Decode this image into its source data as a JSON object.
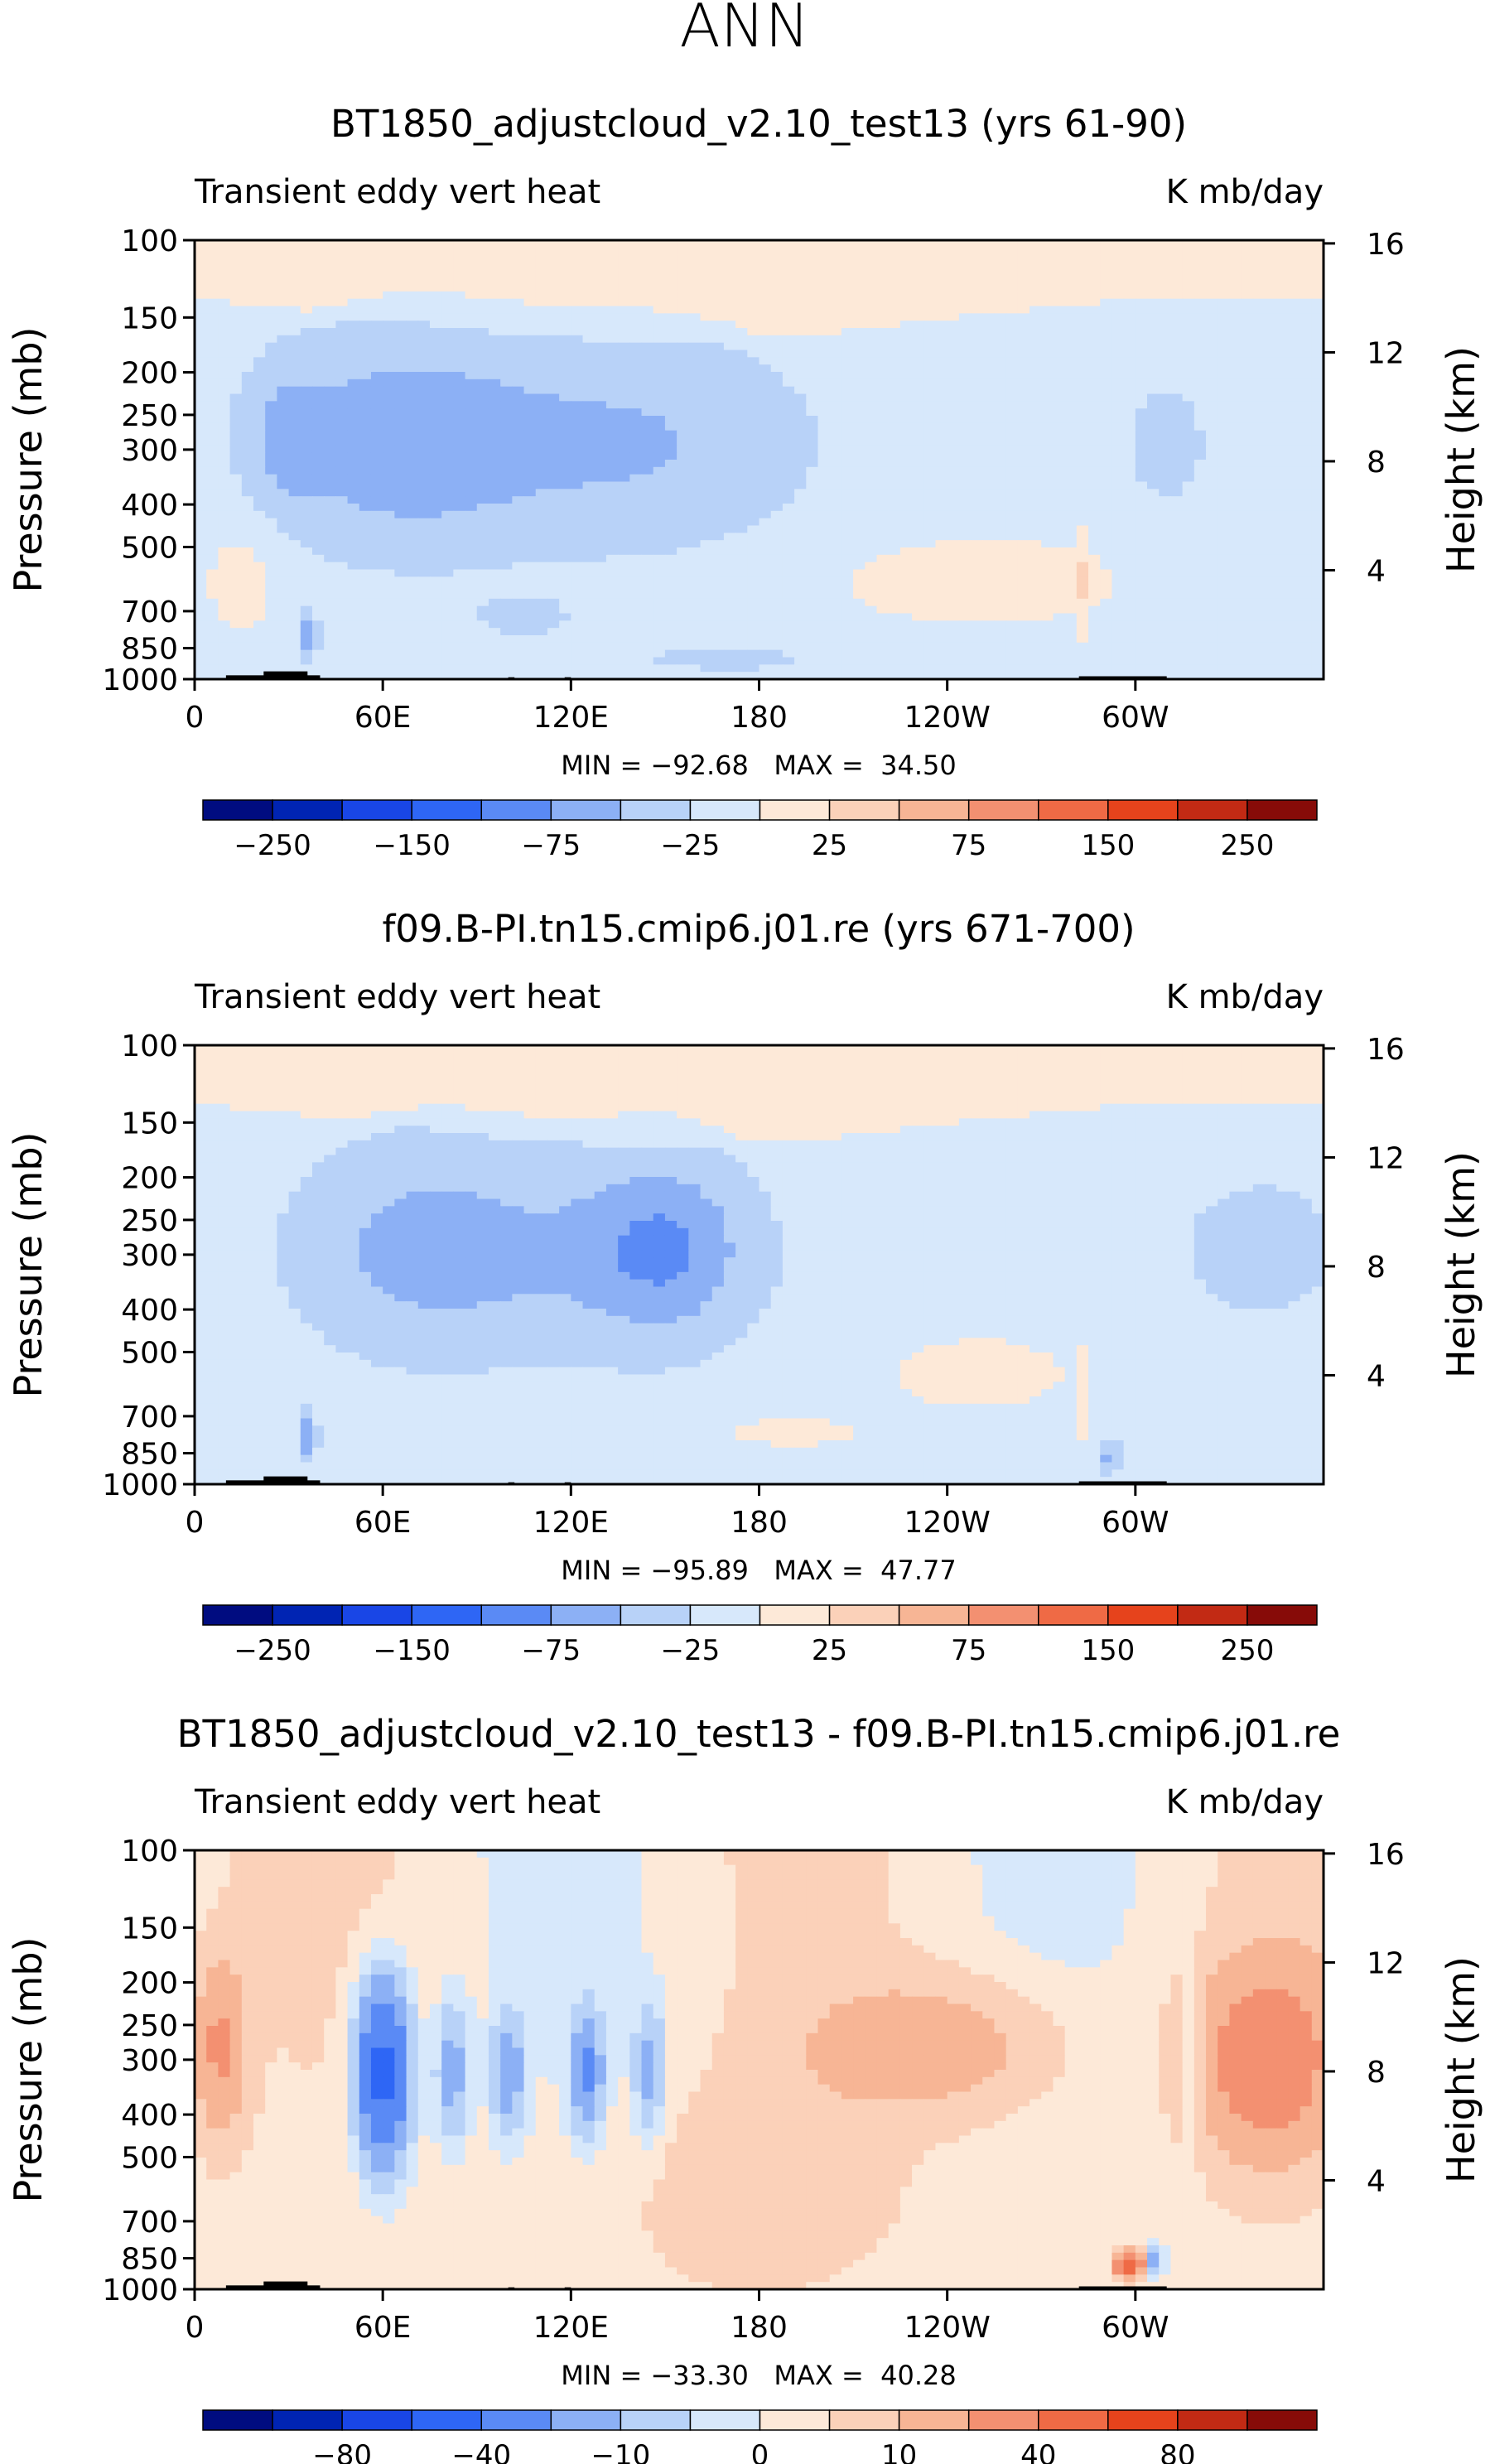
{
  "figure": {
    "season": "ANN",
    "colors": {
      "neg": [
        "#000c80",
        "#0024b3",
        "#1946e6",
        "#2e66f5",
        "#5a8af5",
        "#8cb0f5",
        "#b8d2f8",
        "#d7e8fb"
      ],
      "pos": [
        "#fde9d8",
        "#fbd1b9",
        "#f7b595",
        "#f39071",
        "#ef6a45",
        "#e6431c",
        "#c22a14",
        "#870b08"
      ],
      "terrain": "#000000",
      "frame": "#000000"
    }
  },
  "chart_data": [
    {
      "type": "heatmap",
      "title": "BT1850_adjustcloud_v2.10_test13 (yrs 61-90)",
      "subtitle_left": "Transient eddy vert heat",
      "subtitle_right": "K mb/day",
      "ylabel": "Pressure (mb)",
      "ylabel_right": "Height (km)",
      "xticks": [
        "0",
        "60E",
        "120E",
        "180",
        "120W",
        "60W"
      ],
      "xtick_lon": [
        0,
        60,
        120,
        180,
        240,
        300
      ],
      "xlim": [
        0,
        360
      ],
      "yticks": [
        "100",
        "150",
        "200",
        "250",
        "300",
        "400",
        "500",
        "700",
        "850",
        "1000"
      ],
      "ytick_values": [
        100,
        150,
        200,
        250,
        300,
        400,
        500,
        700,
        850,
        1000
      ],
      "ylim": [
        1000,
        100
      ],
      "height_ticks": [
        "16",
        "12",
        "8",
        "4"
      ],
      "height_values": [
        16,
        12,
        8,
        4
      ],
      "stats": "MIN = −92.68   MAX =  34.50",
      "colorbar": {
        "boundaries": [
          -300,
          -250,
          -200,
          -150,
          -100,
          -75,
          -50,
          -25,
          0,
          25,
          50,
          75,
          100,
          150,
          200,
          250,
          300
        ],
        "labels": [
          "−250",
          "−150",
          "−75",
          "−25",
          "25",
          "75",
          "150",
          "250"
        ]
      },
      "features": [
        {
          "lon": 65,
          "p": 290,
          "v": -55,
          "rx": 42,
          "ry": 0.55
        },
        {
          "lon": 140,
          "p": 290,
          "v": -40,
          "rx": 55,
          "ry": 0.55
        },
        {
          "lon": 30,
          "p": 280,
          "v": -30,
          "rx": 12,
          "ry": 0.35
        },
        {
          "lon": 36,
          "p": 800,
          "v": -60,
          "rx": 3,
          "ry": 0.12
        },
        {
          "lon": 105,
          "p": 720,
          "v": -25,
          "rx": 14,
          "ry": 0.1
        },
        {
          "lon": 170,
          "p": 900,
          "v": -28,
          "rx": 25,
          "ry": 0.06
        },
        {
          "lon": 310,
          "p": 290,
          "v": -30,
          "rx": 12,
          "ry": 0.3
        },
        {
          "lon": 283,
          "p": 600,
          "v": 25,
          "rx": 2,
          "ry": 0.3
        },
        {
          "lon": 250,
          "p": 600,
          "v": 26,
          "rx": 50,
          "ry": 0.25
        },
        {
          "lon": 15,
          "p": 600,
          "v": 26,
          "rx": 12,
          "ry": 0.3
        }
      ]
    },
    {
      "type": "heatmap",
      "title": "f09.B-PI.tn15.cmip6.j01.re (yrs 671-700)",
      "subtitle_left": "Transient eddy vert heat",
      "subtitle_right": "K mb/day",
      "ylabel": "Pressure (mb)",
      "ylabel_right": "Height (km)",
      "xticks": [
        "0",
        "60E",
        "120E",
        "180",
        "120W",
        "60W"
      ],
      "xtick_lon": [
        0,
        60,
        120,
        180,
        240,
        300
      ],
      "xlim": [
        0,
        360
      ],
      "yticks": [
        "100",
        "150",
        "200",
        "250",
        "300",
        "400",
        "500",
        "700",
        "850",
        "1000"
      ],
      "ytick_values": [
        100,
        150,
        200,
        250,
        300,
        400,
        500,
        700,
        850,
        1000
      ],
      "ylim": [
        1000,
        100
      ],
      "height_ticks": [
        "16",
        "12",
        "8",
        "4"
      ],
      "height_values": [
        16,
        12,
        8,
        4
      ],
      "stats": "MIN = −95.89   MAX =  47.77",
      "colorbar": {
        "boundaries": [
          -300,
          -250,
          -200,
          -150,
          -100,
          -75,
          -50,
          -25,
          0,
          25,
          50,
          75,
          100,
          150,
          200,
          250,
          300
        ],
        "labels": [
          "−250",
          "−150",
          "−75",
          "−25",
          "25",
          "75",
          "150",
          "250"
        ]
      },
      "features": [
        {
          "lon": 70,
          "p": 290,
          "v": -40,
          "rx": 40,
          "ry": 0.55
        },
        {
          "lon": 150,
          "p": 290,
          "v": -48,
          "rx": 25,
          "ry": 0.45
        },
        {
          "lon": 125,
          "p": 300,
          "v": -28,
          "rx": 55,
          "ry": 0.55
        },
        {
          "lon": 340,
          "p": 290,
          "v": -30,
          "rx": 25,
          "ry": 0.35
        },
        {
          "lon": 36,
          "p": 780,
          "v": -60,
          "rx": 3,
          "ry": 0.12
        },
        {
          "lon": 292,
          "p": 870,
          "v": -55,
          "rx": 3,
          "ry": 0.08
        },
        {
          "lon": 250,
          "p": 560,
          "v": 26,
          "rx": 30,
          "ry": 0.2
        },
        {
          "lon": 190,
          "p": 760,
          "v": 26,
          "rx": 22,
          "ry": 0.08
        },
        {
          "lon": 283,
          "p": 650,
          "v": 25,
          "rx": 2,
          "ry": 0.25
        }
      ]
    },
    {
      "type": "heatmap",
      "title": "BT1850_adjustcloud_v2.10_test13 - f09.B-PI.tn15.cmip6.j01.re",
      "subtitle_left": "Transient eddy vert heat",
      "subtitle_right": "K mb/day",
      "ylabel": "Pressure (mb)",
      "ylabel_right": "Height (km)",
      "xticks": [
        "0",
        "60E",
        "120E",
        "180",
        "120W",
        "60W"
      ],
      "xtick_lon": [
        0,
        60,
        120,
        180,
        240,
        300
      ],
      "xlim": [
        0,
        360
      ],
      "yticks": [
        "100",
        "150",
        "200",
        "250",
        "300",
        "400",
        "500",
        "700",
        "850",
        "1000"
      ],
      "ytick_values": [
        100,
        150,
        200,
        250,
        300,
        400,
        500,
        700,
        850,
        1000
      ],
      "ylim": [
        1000,
        100
      ],
      "height_ticks": [
        "16",
        "12",
        "8",
        "4"
      ],
      "height_values": [
        16,
        12,
        8,
        4
      ],
      "stats": "MIN = −33.30   MAX =  40.28",
      "colorbar": {
        "boundaries": [
          -100,
          -80,
          -60,
          -40,
          -20,
          -10,
          -5,
          -2,
          0,
          2,
          5,
          10,
          20,
          40,
          60,
          80,
          100
        ],
        "labels": [
          "−80",
          "−40",
          "−10",
          "0",
          "10",
          "40",
          "80"
        ]
      },
      "features": [
        {
          "lon": 8,
          "p": 280,
          "v": 10,
          "rx": 8,
          "ry": 0.45
        },
        {
          "lon": 60,
          "p": 320,
          "v": -25,
          "rx": 8,
          "ry": 0.45
        },
        {
          "lon": 82,
          "p": 320,
          "v": -8,
          "rx": 5,
          "ry": 0.35
        },
        {
          "lon": 100,
          "p": 320,
          "v": -9,
          "rx": 5,
          "ry": 0.3
        },
        {
          "lon": 125,
          "p": 320,
          "v": -12,
          "rx": 5,
          "ry": 0.3
        },
        {
          "lon": 145,
          "p": 320,
          "v": -7,
          "rx": 5,
          "ry": 0.35
        },
        {
          "lon": 235,
          "p": 280,
          "v": 7,
          "rx": 40,
          "ry": 0.35
        },
        {
          "lon": 342,
          "p": 300,
          "v": 14,
          "rx": 22,
          "ry": 0.5
        },
        {
          "lon": 318,
          "p": 300,
          "v": -4,
          "rx": 3,
          "ry": 0.5
        },
        {
          "lon": 298,
          "p": 880,
          "v": 30,
          "rx": 4,
          "ry": 0.06
        },
        {
          "lon": 306,
          "p": 870,
          "v": -8,
          "rx": 3,
          "ry": 0.08
        },
        {
          "lon": 180,
          "p": 600,
          "v": 3,
          "rx": 40,
          "ry": 0.5
        }
      ]
    }
  ]
}
